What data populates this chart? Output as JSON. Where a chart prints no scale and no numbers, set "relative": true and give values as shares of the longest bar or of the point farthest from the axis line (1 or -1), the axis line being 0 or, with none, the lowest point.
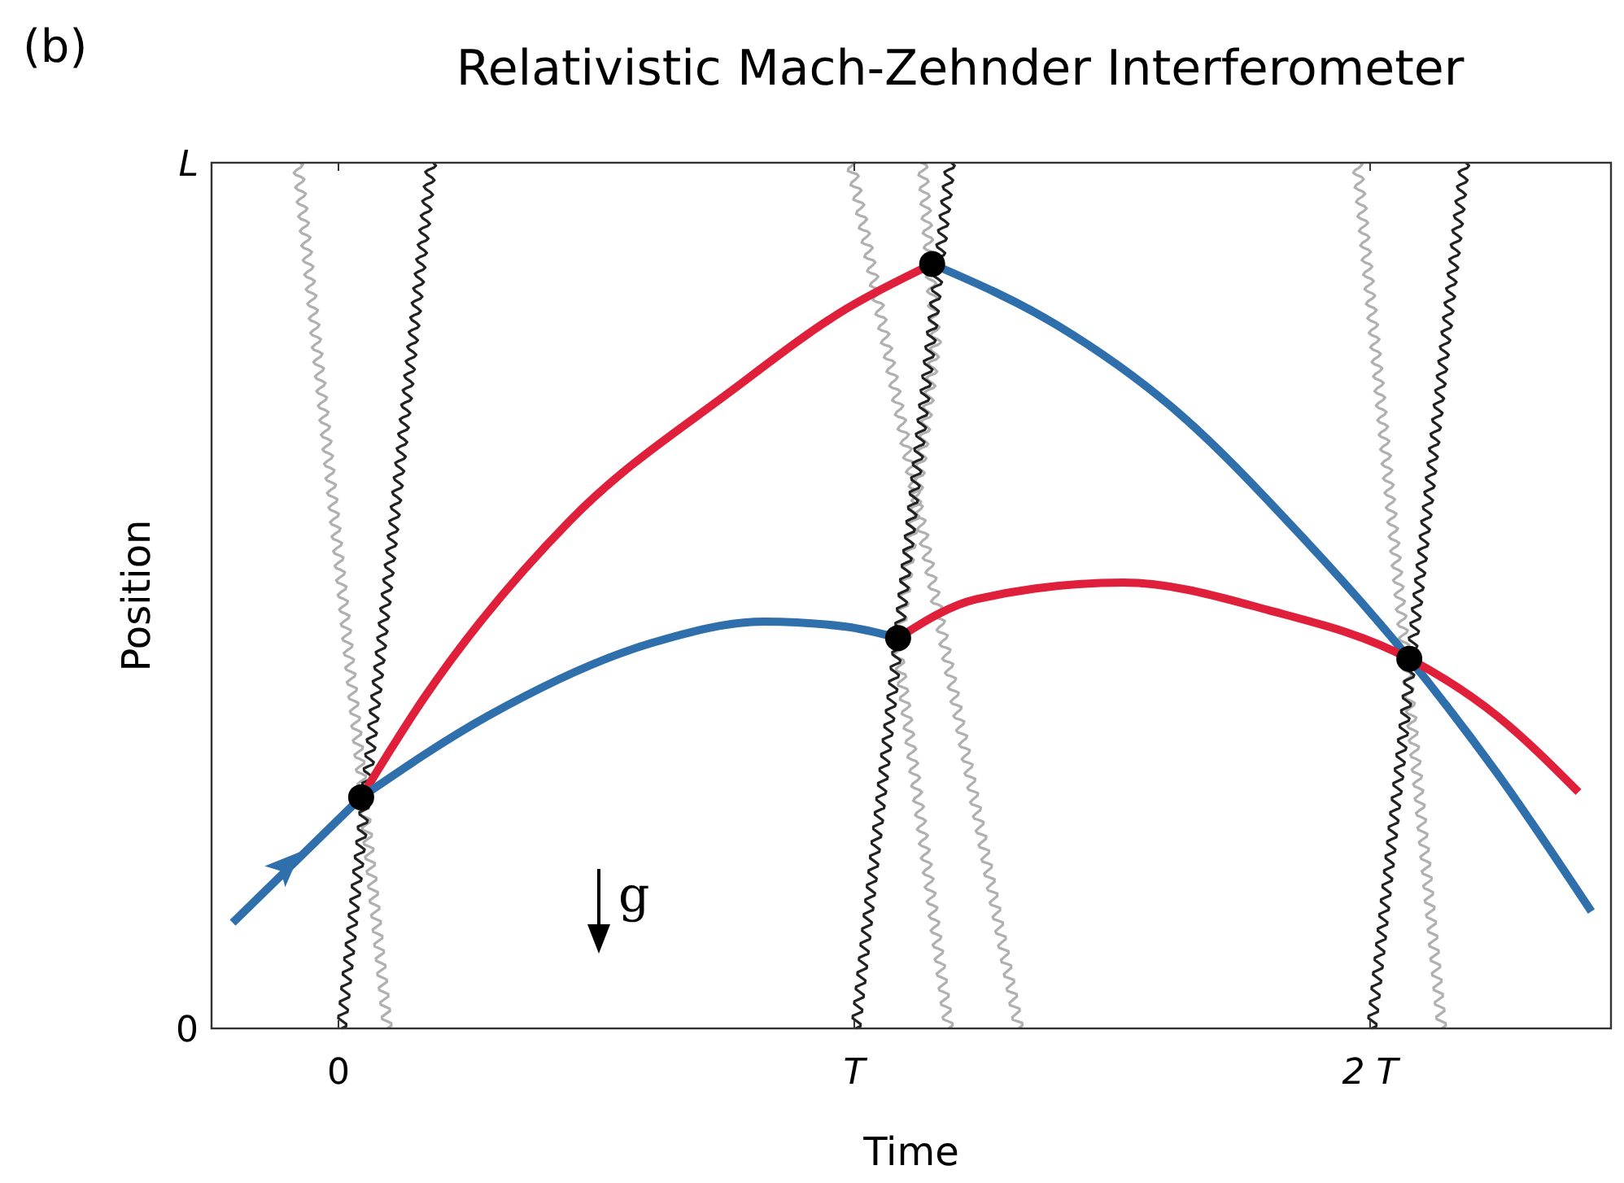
{
  "chart_data": {
    "type": "line",
    "title": "Relativistic Mach-Zehnder Interferometer",
    "xlabel": "Time",
    "ylabel": "Position",
    "annotations": [
      "(b)",
      "g",
      "0",
      "L"
    ],
    "relative": true,
    "xlim": [
      -0.246,
      2.467
    ],
    "xticks": [
      0,
      {
        "value": 1,
        "label": "T"
      },
      {
        "value": 2,
        "label": "2 T"
      }
    ],
    "series": [
      {
        "color": "#b0b0b0",
        "x": [
          0.095,
          -0.079
        ],
        "values": [
          0,
          1
        ]
      },
      {
        "color": "#222222",
        "x": [
          0.006,
          0.18
        ],
        "values": [
          0,
          1
        ]
      },
      {
        "color": "#b0b0b0",
        "x": [
          1.319,
          0.994
        ],
        "values": [
          0,
          1
        ]
      },
      {
        "color": "#b0b0b0",
        "x": [
          1.183,
          1.085,
          1.158,
          1.132
        ],
        "values": [
          0,
          0.436,
          0.793,
          1
        ]
      },
      {
        "color": "#222222",
        "x": [
          1.003,
          1.186
        ],
        "values": [
          0,
          1
        ]
      },
      {
        "color": "#b0b0b0",
        "x": [
          2.139,
          1.975
        ],
        "values": [
          0,
          1
        ]
      },
      {
        "color": "#222222",
        "x": [
          2.003,
          2.183
        ],
        "values": [
          0,
          1
        ]
      },
      {
        "line_style": "solid",
        "color": "#2f6fab",
        "x": [
          -0.205,
          0.044
        ],
        "values": [
          0.122,
          0.267
        ]
      },
      {
        "line_style": "solid",
        "color": "#e0203a",
        "x": [
          0.044,
          0.164,
          0.448,
          0.763,
          0.984,
          1.151
        ],
        "values": [
          0.267,
          0.38,
          0.586,
          0.737,
          0.831,
          0.883
        ]
      },
      {
        "line_style": "solid",
        "color": "#2f6fab",
        "x": [
          0.044,
          0.29,
          0.606,
          0.826,
          0.984,
          1.085
        ],
        "values": [
          0.267,
          0.361,
          0.445,
          0.47,
          0.464,
          0.451
        ]
      },
      {
        "line_style": "solid",
        "color": "#2f6fab",
        "x": [
          1.151,
          1.394,
          1.615,
          1.868,
          2.076,
          2.246,
          2.429
        ],
        "values": [
          0.883,
          0.812,
          0.718,
          0.568,
          0.427,
          0.295,
          0.135
        ]
      },
      {
        "line_style": "solid",
        "color": "#e0203a",
        "x": [
          1.085,
          1.237,
          1.521,
          1.804,
          2.076,
          2.246,
          2.404
        ],
        "values": [
          0.451,
          0.496,
          0.515,
          0.483,
          0.427,
          0.361,
          0.273
        ]
      },
      {
        "type": "scatter",
        "marker": "circle",
        "color": "#000000",
        "x": [
          0.044,
          1.151,
          1.085,
          2.076
        ],
        "values": [
          0.267,
          0.883,
          0.451,
          0.427
        ]
      }
    ]
  }
}
